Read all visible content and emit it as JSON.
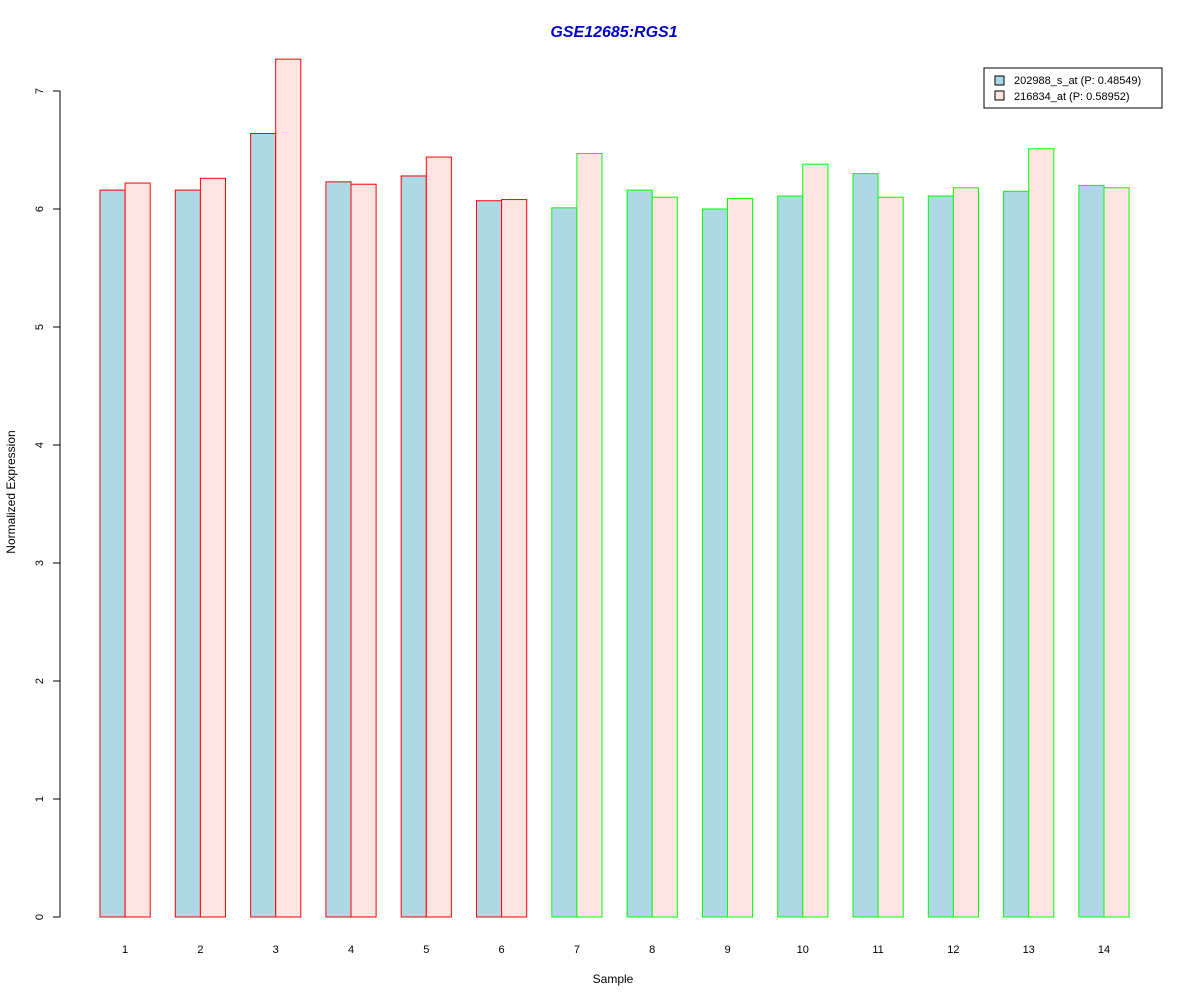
{
  "chart_data": {
    "type": "bar",
    "title": "GSE12685:RGS1",
    "xlabel": "Sample",
    "ylabel": "Normalized Expression",
    "categories": [
      "1",
      "2",
      "3",
      "4",
      "5",
      "6",
      "7",
      "8",
      "9",
      "10",
      "11",
      "12",
      "13",
      "14"
    ],
    "ylim": [
      0,
      7.3
    ],
    "yticks": [
      "0",
      "1",
      "2",
      "3",
      "4",
      "5",
      "6",
      "7"
    ],
    "series": [
      {
        "name": "202988_s_at (P: 0.48549)",
        "fill": "#add8e6",
        "values": [
          6.16,
          6.16,
          6.64,
          6.23,
          6.28,
          6.07,
          6.01,
          6.16,
          6.0,
          6.11,
          6.3,
          6.11,
          6.15,
          6.2
        ]
      },
      {
        "name": "216834_at (P: 0.58952)",
        "fill": "#ffe4e1",
        "values": [
          6.22,
          6.26,
          7.27,
          6.21,
          6.44,
          6.08,
          6.47,
          6.1,
          6.09,
          6.38,
          6.1,
          6.18,
          6.51,
          6.18
        ]
      }
    ],
    "groups": [
      "red",
      "red",
      "red",
      "red",
      "red",
      "red",
      "green",
      "green",
      "green",
      "green",
      "green",
      "green",
      "green",
      "green"
    ],
    "group_colors": {
      "red": "#ff0000",
      "green": "#00ff00"
    },
    "title_color": "#0000cd",
    "legend_position": "top-right",
    "grid": false
  }
}
